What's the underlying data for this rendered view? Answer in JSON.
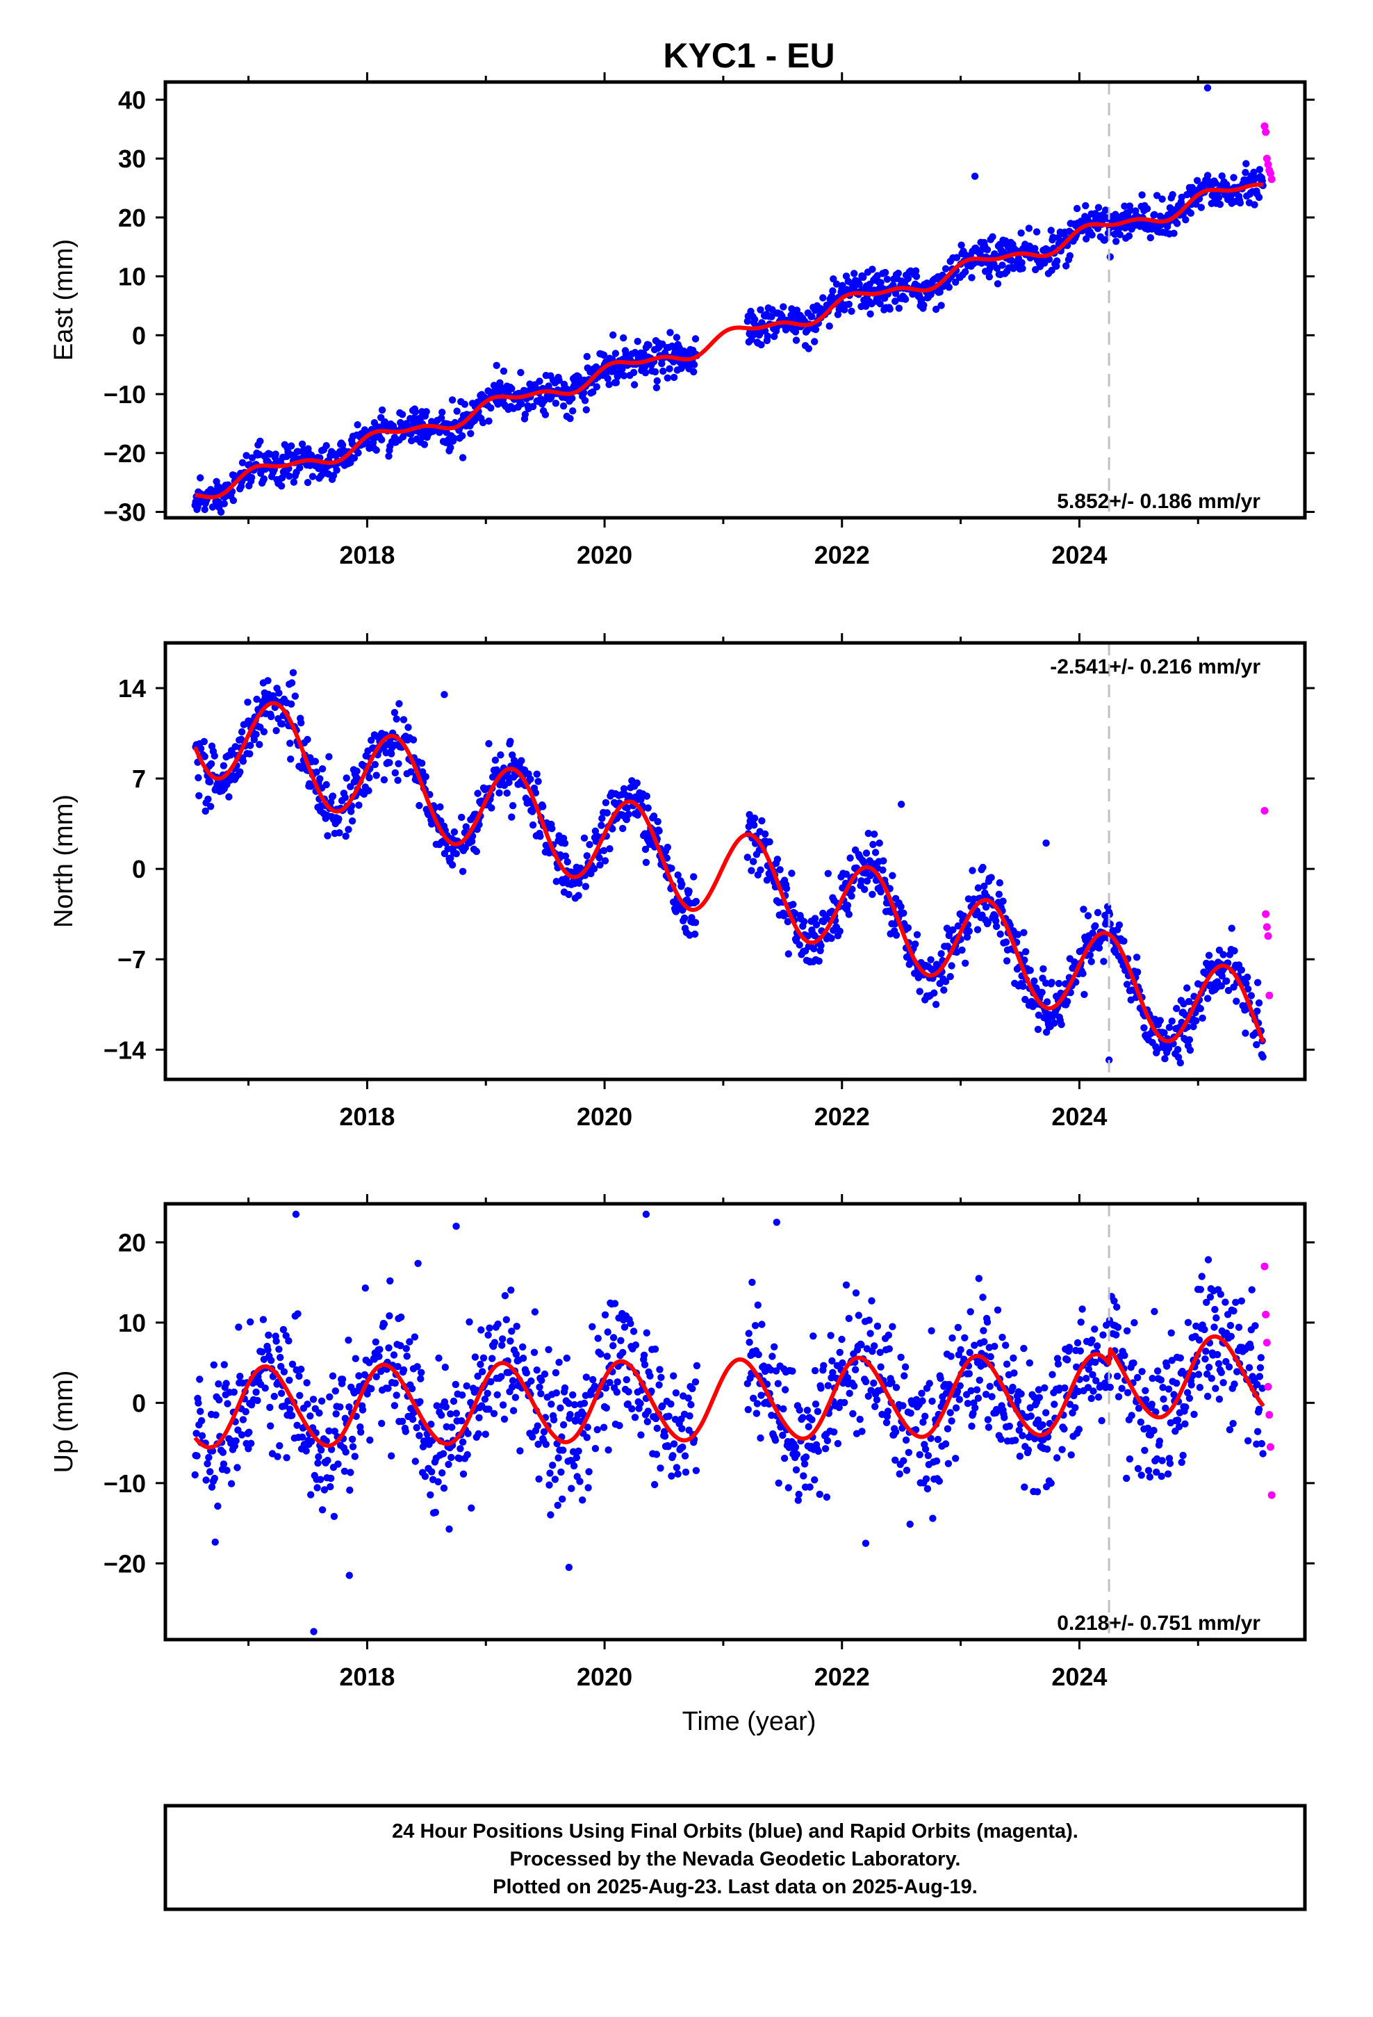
{
  "title": "KYC1 - EU",
  "x_label": "Time (year)",
  "colors": {
    "final_orbits": "#0000ff",
    "rapid_orbits": "#ff00ff",
    "model_fit": "#ff0000",
    "reference_line": "#c0c0c0",
    "frame": "#000000"
  },
  "footer": {
    "line1": "24 Hour Positions Using Final Orbits (blue) and Rapid Orbits (magenta).",
    "line2": "Processed by the Nevada Geodetic Laboratory.",
    "line3": "Plotted on 2025-Aug-23. Last data on 2025-Aug-19."
  },
  "chart_data": [
    {
      "type": "scatter",
      "component": "east",
      "ylabel": "East (mm)",
      "xlim": [
        2016.3,
        2025.9
      ],
      "ylim": [
        -31,
        43
      ],
      "x_ticks": [
        2018,
        2020,
        2022,
        2024
      ],
      "y_ticks": [
        -30,
        -20,
        -10,
        0,
        10,
        20,
        30,
        40
      ],
      "x_tick_labels": [
        "2018",
        "2020",
        "2022",
        "2024"
      ],
      "y_tick_labels": [
        "−30",
        "−20",
        "−10",
        "0",
        "10",
        "20",
        "30",
        "40"
      ],
      "rate_text": "5.852+/- 0.186 mm/yr",
      "rate_position": "bottom-right",
      "reference_epoch": 2024.25,
      "data_start": 2016.55,
      "data_end": 2025.55,
      "gap": [
        2020.78,
        2021.2
      ],
      "model": {
        "offset": -26.8,
        "trend_mm_per_yr": 5.852,
        "t0": 2016.55,
        "annual_sin": 1.05,
        "annual_cos": 0.6,
        "semiannual_sin": 0.15,
        "semiannual_cos": 0.6,
        "step_epoch": 2024.25,
        "step_mm": 0.0
      },
      "scatter_std_mm": 1.6,
      "final_orbits_mean_spacing_days": 2,
      "outliers": [
        {
          "x": 2023.12,
          "y": 27
        },
        {
          "x": 2025.08,
          "y": 42
        },
        {
          "x": 2017.5,
          "y": -25
        }
      ],
      "rapid_orbits": [
        {
          "x": 2025.56,
          "y": 35.5
        },
        {
          "x": 2025.57,
          "y": 34.5
        },
        {
          "x": 2025.58,
          "y": 30
        },
        {
          "x": 2025.59,
          "y": 29
        },
        {
          "x": 2025.6,
          "y": 28
        },
        {
          "x": 2025.61,
          "y": 27.5
        },
        {
          "x": 2025.62,
          "y": 26.5
        }
      ]
    },
    {
      "type": "scatter",
      "component": "north",
      "ylabel": "North (mm)",
      "xlim": [
        2016.3,
        2025.9
      ],
      "ylim": [
        -16.3,
        17.5
      ],
      "x_ticks": [
        2018,
        2020,
        2022,
        2024
      ],
      "y_ticks": [
        -14,
        -7,
        0,
        7,
        14
      ],
      "x_tick_labels": [
        "2018",
        "2020",
        "2022",
        "2024"
      ],
      "y_tick_labels": [
        "−14",
        "−7",
        "0",
        "7",
        "14"
      ],
      "rate_text": "-2.541+/- 0.216 mm/yr",
      "rate_position": "top-right",
      "reference_epoch": 2024.25,
      "data_start": 2016.55,
      "data_end": 2025.55,
      "gap": [
        2020.78,
        2021.2
      ],
      "model": {
        "offset": 11.0,
        "trend_mm_per_yr": -2.541,
        "t0": 2016.55,
        "annual_sin": 3.5,
        "annual_cos": 0.5,
        "semiannual_sin": 0.0,
        "semiannual_cos": 0.0,
        "step_epoch": 2024.25,
        "step_mm": 0.0
      },
      "scatter_std_mm": 1.1,
      "final_orbits_mean_spacing_days": 2,
      "outliers": [
        {
          "x": 2022.5,
          "y": 5
        },
        {
          "x": 2023.72,
          "y": 2
        },
        {
          "x": 2024.25,
          "y": -14.8
        },
        {
          "x": 2018.65,
          "y": 13.5
        }
      ],
      "rapid_orbits": [
        {
          "x": 2025.56,
          "y": 4.5
        },
        {
          "x": 2025.57,
          "y": -3.5
        },
        {
          "x": 2025.58,
          "y": -4.5
        },
        {
          "x": 2025.59,
          "y": -5.2
        },
        {
          "x": 2025.6,
          "y": -9.8
        }
      ]
    },
    {
      "type": "scatter",
      "component": "up",
      "ylabel": "Up (mm)",
      "xlim": [
        2016.3,
        2025.9
      ],
      "ylim": [
        -29.5,
        24.8
      ],
      "x_ticks": [
        2018,
        2020,
        2022,
        2024
      ],
      "y_ticks": [
        -20,
        -10,
        0,
        10,
        20
      ],
      "x_tick_labels": [
        "2018",
        "2020",
        "2022",
        "2024"
      ],
      "y_tick_labels": [
        "−20",
        "−10",
        "0",
        "10",
        "20"
      ],
      "rate_text": "0.218+/- 0.751 mm/yr",
      "rate_position": "bottom-right",
      "reference_epoch": 2024.25,
      "data_start": 2016.55,
      "data_end": 2025.55,
      "gap": [
        2020.78,
        2021.2
      ],
      "model": {
        "offset": -0.7,
        "trend_mm_per_yr": 0.218,
        "t0": 2016.55,
        "annual_sin": 4.1,
        "annual_cos": 2.8,
        "semiannual_sin": 0.2,
        "semiannual_cos": 0.2,
        "step_epoch": 2024.25,
        "step_mm": 2.0
      },
      "scatter_std_mm": 4.3,
      "final_orbits_mean_spacing_days": 2,
      "outliers": [
        {
          "x": 2017.4,
          "y": 23.5
        },
        {
          "x": 2018.75,
          "y": 22
        },
        {
          "x": 2020.35,
          "y": 23.5
        },
        {
          "x": 2021.45,
          "y": 22.5
        },
        {
          "x": 2017.55,
          "y": -28.5
        },
        {
          "x": 2019.7,
          "y": -20.5
        },
        {
          "x": 2017.85,
          "y": -21.5
        },
        {
          "x": 2022.2,
          "y": -17.5
        }
      ],
      "rapid_orbits": [
        {
          "x": 2025.56,
          "y": 17
        },
        {
          "x": 2025.57,
          "y": 11
        },
        {
          "x": 2025.58,
          "y": 7.5
        },
        {
          "x": 2025.59,
          "y": 2
        },
        {
          "x": 2025.6,
          "y": -1.5
        },
        {
          "x": 2025.61,
          "y": -5.5
        },
        {
          "x": 2025.62,
          "y": -11.5
        }
      ]
    }
  ]
}
